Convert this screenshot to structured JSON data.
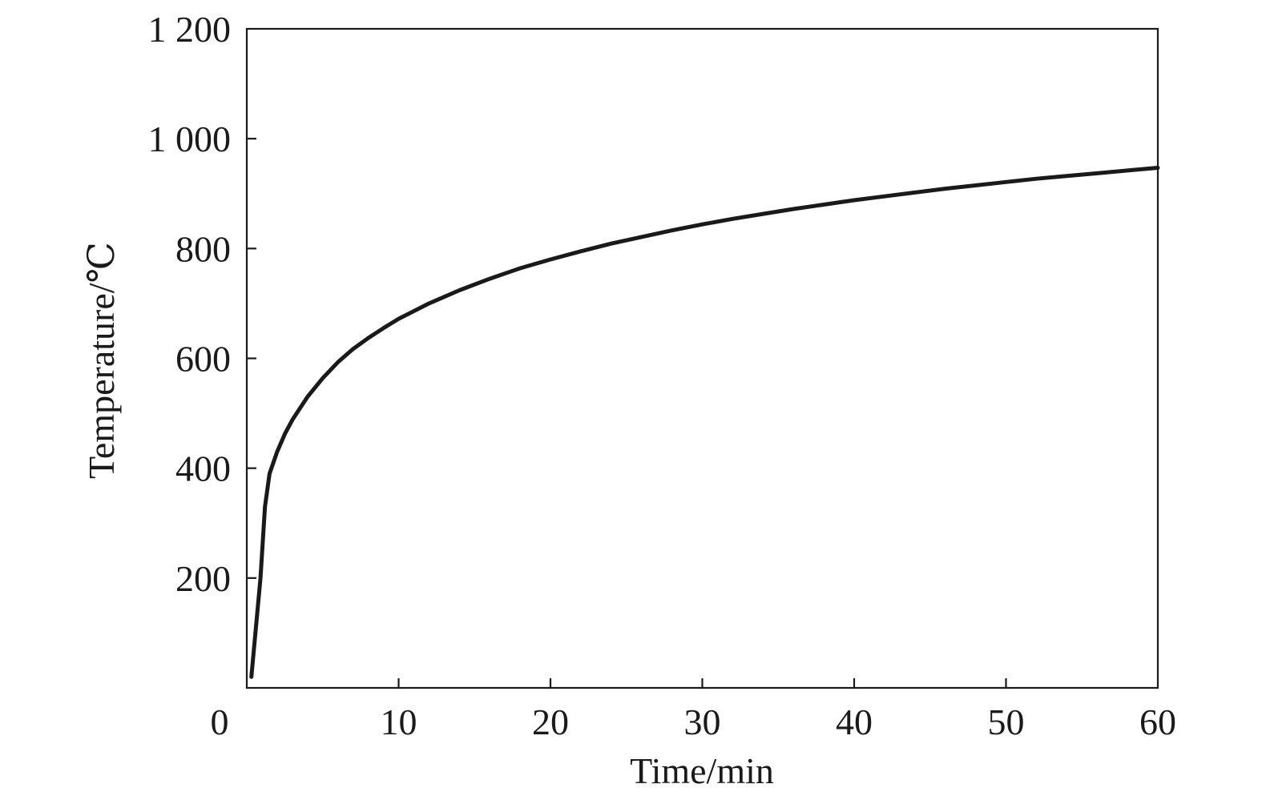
{
  "chart_data": {
    "type": "line",
    "title": "",
    "xlabel": "Time/min",
    "ylabel": "Temperature/℃",
    "xlim": [
      0,
      60
    ],
    "ylim": [
      0,
      1200
    ],
    "x_ticks": [
      0,
      10,
      20,
      30,
      40,
      50,
      60
    ],
    "x_tick_labels": [
      "0",
      "10",
      "20",
      "30",
      "40",
      "50",
      "60"
    ],
    "y_ticks": [
      200,
      400,
      600,
      800,
      1000,
      1200
    ],
    "y_tick_labels": [
      "200",
      "400",
      "600",
      "800",
      "1 000",
      "1 200"
    ],
    "grid": false,
    "series": [
      {
        "color": "#1a1a1a",
        "x": [
          0.3,
          0.6,
          0.9,
          1.2,
          1.5,
          2,
          2.5,
          3,
          4,
          5,
          6,
          7,
          8,
          9,
          10,
          12,
          14,
          16,
          18,
          20,
          22,
          24,
          26,
          28,
          30,
          32,
          34,
          36,
          38,
          40,
          42,
          44,
          46,
          48,
          50,
          52,
          54,
          56,
          58,
          60
        ],
        "y": [
          20,
          110,
          200,
          330,
          390,
          430,
          462,
          488,
          530,
          564,
          593,
          617,
          637,
          655,
          672,
          700,
          724,
          745,
          764,
          780,
          795,
          809,
          821,
          833,
          844,
          854,
          863,
          872,
          880,
          888,
          895,
          902,
          909,
          915,
          921,
          927,
          932,
          937,
          942,
          947
        ]
      }
    ]
  }
}
